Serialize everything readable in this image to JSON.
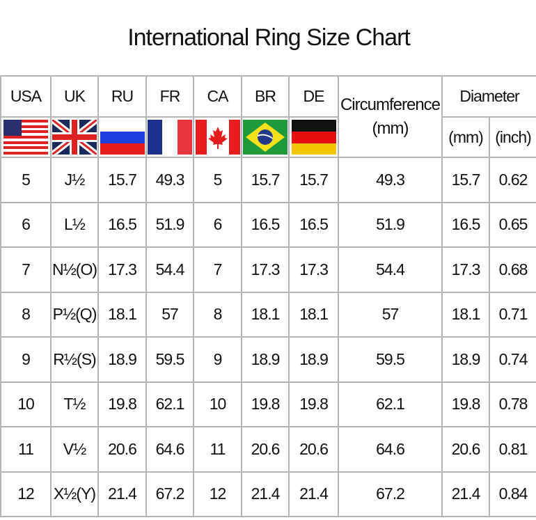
{
  "chart_data": {
    "type": "table",
    "title": "International Ring Size Chart",
    "columns": [
      "USA",
      "UK",
      "RU",
      "FR",
      "CA",
      "BR",
      "DE"
    ],
    "circumference_header": "Circumference",
    "circumference_unit": "(mm)",
    "diameter_header": "Diameter",
    "diameter_units": [
      "(mm)",
      "(inch)"
    ],
    "flags": [
      "us-flag",
      "uk-flag",
      "russia-flag",
      "france-flag",
      "canada-flag",
      "brazil-flag",
      "germany-flag"
    ],
    "rows": [
      [
        "5",
        "J½",
        "15.7",
        "49.3",
        "5",
        "15.7",
        "15.7",
        "49.3",
        "15.7",
        "0.62"
      ],
      [
        "6",
        "L½",
        "16.5",
        "51.9",
        "6",
        "16.5",
        "16.5",
        "51.9",
        "16.5",
        "0.65"
      ],
      [
        "7",
        "N½(O)",
        "17.3",
        "54.4",
        "7",
        "17.3",
        "17.3",
        "54.4",
        "17.3",
        "0.68"
      ],
      [
        "8",
        "P½(Q)",
        "18.1",
        "57",
        "8",
        "18.1",
        "18.1",
        "57",
        "18.1",
        "0.71"
      ],
      [
        "9",
        "R½(S)",
        "18.9",
        "59.5",
        "9",
        "18.9",
        "18.9",
        "59.5",
        "18.9",
        "0.74"
      ],
      [
        "10",
        "T½",
        "19.8",
        "62.1",
        "10",
        "19.8",
        "19.8",
        "62.1",
        "19.8",
        "0.78"
      ],
      [
        "11",
        "V½",
        "20.6",
        "64.6",
        "11",
        "20.6",
        "20.6",
        "64.6",
        "20.6",
        "0.81"
      ],
      [
        "12",
        "X½(Y)",
        "21.4",
        "67.2",
        "12",
        "21.4",
        "21.4",
        "67.2",
        "21.4",
        "0.84"
      ]
    ],
    "border_color": "#b5b5b5"
  }
}
